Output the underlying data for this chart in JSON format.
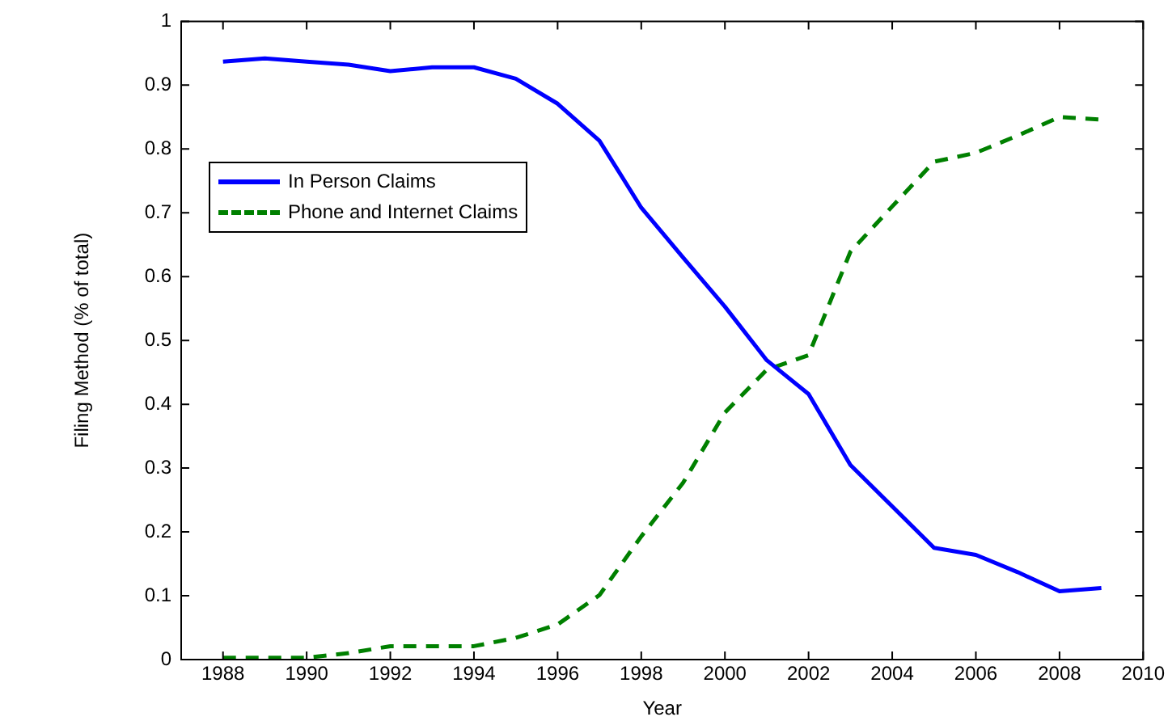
{
  "chart_data": {
    "type": "line",
    "xlabel": "Year",
    "ylabel": "Filing Method (% of total)",
    "x": [
      1988,
      1989,
      1990,
      1991,
      1992,
      1993,
      1994,
      1995,
      1996,
      1997,
      1998,
      1999,
      2000,
      2001,
      2002,
      2003,
      2004,
      2005,
      2006,
      2007,
      2008,
      2009
    ],
    "series": [
      {
        "name": "In Person Claims",
        "color": "#0000ff",
        "line_style": "solid",
        "values": [
          0.937,
          0.942,
          0.937,
          0.932,
          0.922,
          0.928,
          0.928,
          0.91,
          0.871,
          0.813,
          0.708,
          0.63,
          0.553,
          0.469,
          0.416,
          0.305,
          0.24,
          0.175,
          0.164,
          0.137,
          0.107,
          0.112
        ]
      },
      {
        "name": "Phone and Internet Claims",
        "color": "#008000",
        "line_style": "dashed",
        "values": [
          0.003,
          0.003,
          0.003,
          0.01,
          0.021,
          0.021,
          0.021,
          0.034,
          0.055,
          0.101,
          0.193,
          0.277,
          0.387,
          0.454,
          0.477,
          0.639,
          0.71,
          0.78,
          0.794,
          0.821,
          0.85,
          0.846
        ]
      }
    ],
    "xlim": [
      1987,
      2010
    ],
    "xticks": [
      1988,
      1990,
      1992,
      1994,
      1996,
      1998,
      2000,
      2002,
      2004,
      2006,
      2008,
      2010
    ],
    "ylim": [
      0,
      1
    ],
    "yticks": [
      0,
      0.1,
      0.2,
      0.3,
      0.4,
      0.5,
      0.6,
      0.7,
      0.8,
      0.9,
      1
    ],
    "grid": false,
    "legend": "top left",
    "marker": "none"
  }
}
